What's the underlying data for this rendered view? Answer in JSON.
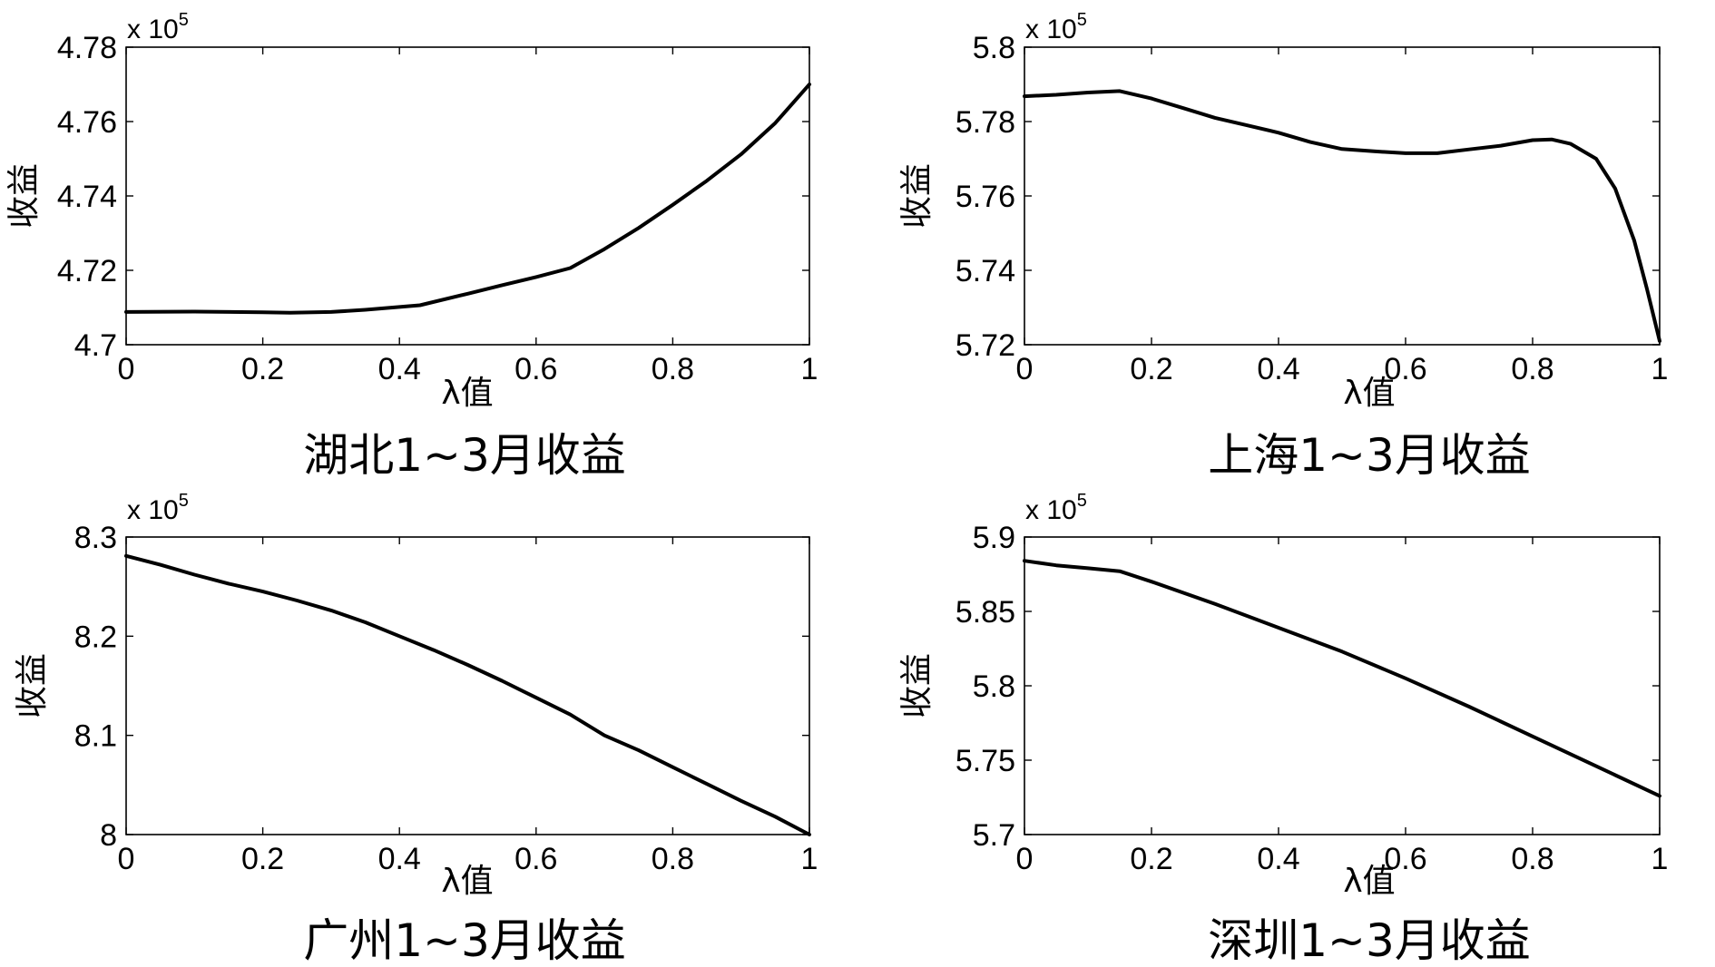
{
  "chart_data": [
    {
      "type": "line",
      "title": "湖北1~3月收益",
      "xlabel": "λ值",
      "ylabel": "收益",
      "y_exponent_label": "x 10",
      "y_exponent_power": "5",
      "xlim": [
        0,
        1
      ],
      "ylim": [
        4.7,
        4.78
      ],
      "x_ticks": [
        0,
        0.2,
        0.4,
        0.6,
        0.8,
        1
      ],
      "x_tick_labels": [
        "0",
        "0.2",
        "0.4",
        "0.6",
        "0.8",
        "1"
      ],
      "y_ticks": [
        4.7,
        4.72,
        4.74,
        4.76,
        4.78
      ],
      "y_tick_labels": [
        "4.7",
        "4.72",
        "4.74",
        "4.76",
        "4.78"
      ],
      "series": [
        {
          "x": [
            0,
            0.1,
            0.2,
            0.24,
            0.3,
            0.35,
            0.43,
            0.5,
            0.55,
            0.6,
            0.65,
            0.7,
            0.75,
            0.8,
            0.85,
            0.9,
            0.95,
            1.0
          ],
          "y": [
            4.7088,
            4.7089,
            4.7087,
            4.7086,
            4.7088,
            4.7094,
            4.7106,
            4.7137,
            4.716,
            4.7182,
            4.7206,
            4.7257,
            4.7314,
            4.7376,
            4.7441,
            4.7512,
            4.7596,
            4.77
          ]
        }
      ]
    },
    {
      "type": "line",
      "title": "上海1~3月收益",
      "xlabel": "λ值",
      "ylabel": "收益",
      "y_exponent_label": "x 10",
      "y_exponent_power": "5",
      "xlim": [
        0,
        1
      ],
      "ylim": [
        5.72,
        5.8
      ],
      "x_ticks": [
        0,
        0.2,
        0.4,
        0.6,
        0.8,
        1
      ],
      "x_tick_labels": [
        "0",
        "0.2",
        "0.4",
        "0.6",
        "0.8",
        "1"
      ],
      "y_ticks": [
        5.72,
        5.74,
        5.76,
        5.78,
        5.8
      ],
      "y_tick_labels": [
        "5.72",
        "5.74",
        "5.76",
        "5.78",
        "5.8"
      ],
      "series": [
        {
          "x": [
            0,
            0.05,
            0.1,
            0.15,
            0.2,
            0.25,
            0.3,
            0.35,
            0.4,
            0.45,
            0.5,
            0.55,
            0.6,
            0.65,
            0.7,
            0.75,
            0.8,
            0.83,
            0.86,
            0.9,
            0.93,
            0.96,
            0.98,
            1.0
          ],
          "y": [
            5.7868,
            5.7872,
            5.7878,
            5.7882,
            5.7862,
            5.7836,
            5.781,
            5.779,
            5.777,
            5.7745,
            5.7726,
            5.772,
            5.7715,
            5.7715,
            5.7725,
            5.7735,
            5.775,
            5.7752,
            5.774,
            5.77,
            5.762,
            5.748,
            5.735,
            5.721
          ]
        }
      ]
    },
    {
      "type": "line",
      "title": "广州1~3月收益",
      "xlabel": "λ值",
      "ylabel": "收益",
      "y_exponent_label": "x 10",
      "y_exponent_power": "5",
      "xlim": [
        0,
        1
      ],
      "ylim": [
        8.0,
        8.3
      ],
      "x_ticks": [
        0,
        0.2,
        0.4,
        0.6,
        0.8,
        1
      ],
      "x_tick_labels": [
        "0",
        "0.2",
        "0.4",
        "0.6",
        "0.8",
        "1"
      ],
      "y_ticks": [
        8.0,
        8.1,
        8.2,
        8.3
      ],
      "y_tick_labels": [
        "8",
        "8.1",
        "8.2",
        "8.3"
      ],
      "series": [
        {
          "x": [
            0,
            0.05,
            0.1,
            0.15,
            0.2,
            0.25,
            0.3,
            0.35,
            0.4,
            0.45,
            0.5,
            0.55,
            0.6,
            0.65,
            0.7,
            0.75,
            0.8,
            0.85,
            0.9,
            0.95,
            1.0
          ],
          "y": [
            8.281,
            8.272,
            8.262,
            8.253,
            8.245,
            8.236,
            8.226,
            8.214,
            8.2,
            8.186,
            8.171,
            8.155,
            8.138,
            8.121,
            8.1,
            8.085,
            8.068,
            8.051,
            8.034,
            8.018,
            8.0
          ]
        }
      ]
    },
    {
      "type": "line",
      "title": "深圳1~3月收益",
      "xlabel": "λ值",
      "ylabel": "收益",
      "y_exponent_label": "x 10",
      "y_exponent_power": "5",
      "xlim": [
        0,
        1
      ],
      "ylim": [
        5.7,
        5.9
      ],
      "x_ticks": [
        0,
        0.2,
        0.4,
        0.6,
        0.8,
        1
      ],
      "x_tick_labels": [
        "0",
        "0.2",
        "0.4",
        "0.6",
        "0.8",
        "1"
      ],
      "y_ticks": [
        5.7,
        5.75,
        5.8,
        5.85,
        5.9
      ],
      "y_tick_labels": [
        "5.7",
        "5.75",
        "5.8",
        "5.85",
        "5.9"
      ],
      "series": [
        {
          "x": [
            0,
            0.05,
            0.1,
            0.15,
            0.2,
            0.3,
            0.4,
            0.5,
            0.6,
            0.7,
            0.8,
            0.9,
            1.0
          ],
          "y": [
            5.884,
            5.881,
            5.879,
            5.877,
            5.87,
            5.855,
            5.839,
            5.823,
            5.805,
            5.786,
            5.766,
            5.746,
            5.726
          ]
        }
      ]
    }
  ]
}
